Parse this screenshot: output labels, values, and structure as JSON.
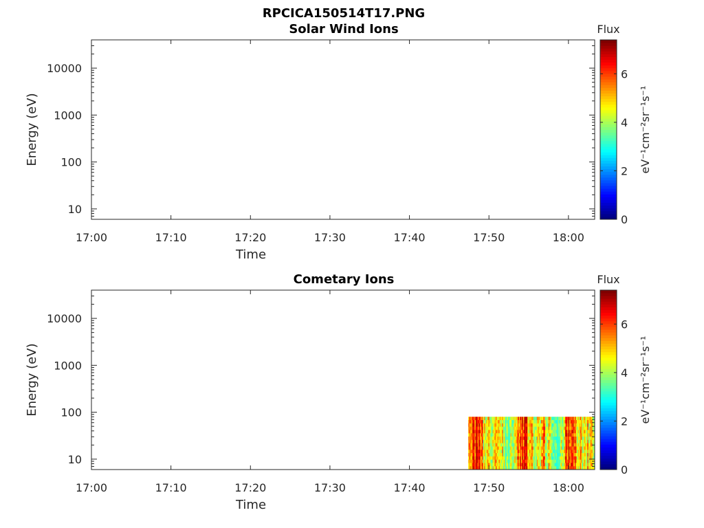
{
  "figure": {
    "filename": "RPCICA150514T17.PNG"
  },
  "colormap": [
    "#00007f",
    "#0000ff",
    "#007fff",
    "#00ffff",
    "#7fff7f",
    "#ffff00",
    "#ff7f00",
    "#ff0000",
    "#7f0000"
  ],
  "chart_data": [
    {
      "type": "heatmap",
      "title": "Solar Wind Ions",
      "xlabel": "Time",
      "ylabel": "Energy (eV)",
      "x_ticks": [
        "17:00",
        "17:10",
        "17:20",
        "17:30",
        "17:40",
        "17:50",
        "18:00"
      ],
      "x_range_minutes": [
        0,
        63.3
      ],
      "y_scale": "log",
      "y_ticks": [
        "10",
        "100",
        "1000",
        "10000"
      ],
      "y_range": [
        6,
        40000
      ],
      "colorbar": {
        "label": "Flux",
        "unit": "eV⁻¹cm⁻²sr⁻¹s⁻¹",
        "ticks": [
          "0",
          "2",
          "4",
          "6"
        ],
        "range": [
          0,
          7.4
        ]
      },
      "data_region": null
    },
    {
      "type": "heatmap",
      "title": "Cometary Ions",
      "xlabel": "Time",
      "ylabel": "Energy (eV)",
      "x_ticks": [
        "17:00",
        "17:10",
        "17:20",
        "17:30",
        "17:40",
        "17:50",
        "18:00"
      ],
      "x_range_minutes": [
        0,
        63.3
      ],
      "y_scale": "log",
      "y_ticks": [
        "10",
        "100",
        "1000",
        "10000"
      ],
      "y_range": [
        6,
        40000
      ],
      "colorbar": {
        "label": "Flux",
        "unit": "eV⁻¹cm⁻²sr⁻¹s⁻¹",
        "ticks": [
          "0",
          "2",
          "4",
          "6"
        ],
        "range": [
          0,
          7.4
        ]
      },
      "data_region": {
        "t_start_minutes": 47.4,
        "t_end_minutes": 63.3,
        "energy_min": 6,
        "energy_max": 80,
        "flux_min": 3,
        "flux_max": 7
      }
    }
  ]
}
